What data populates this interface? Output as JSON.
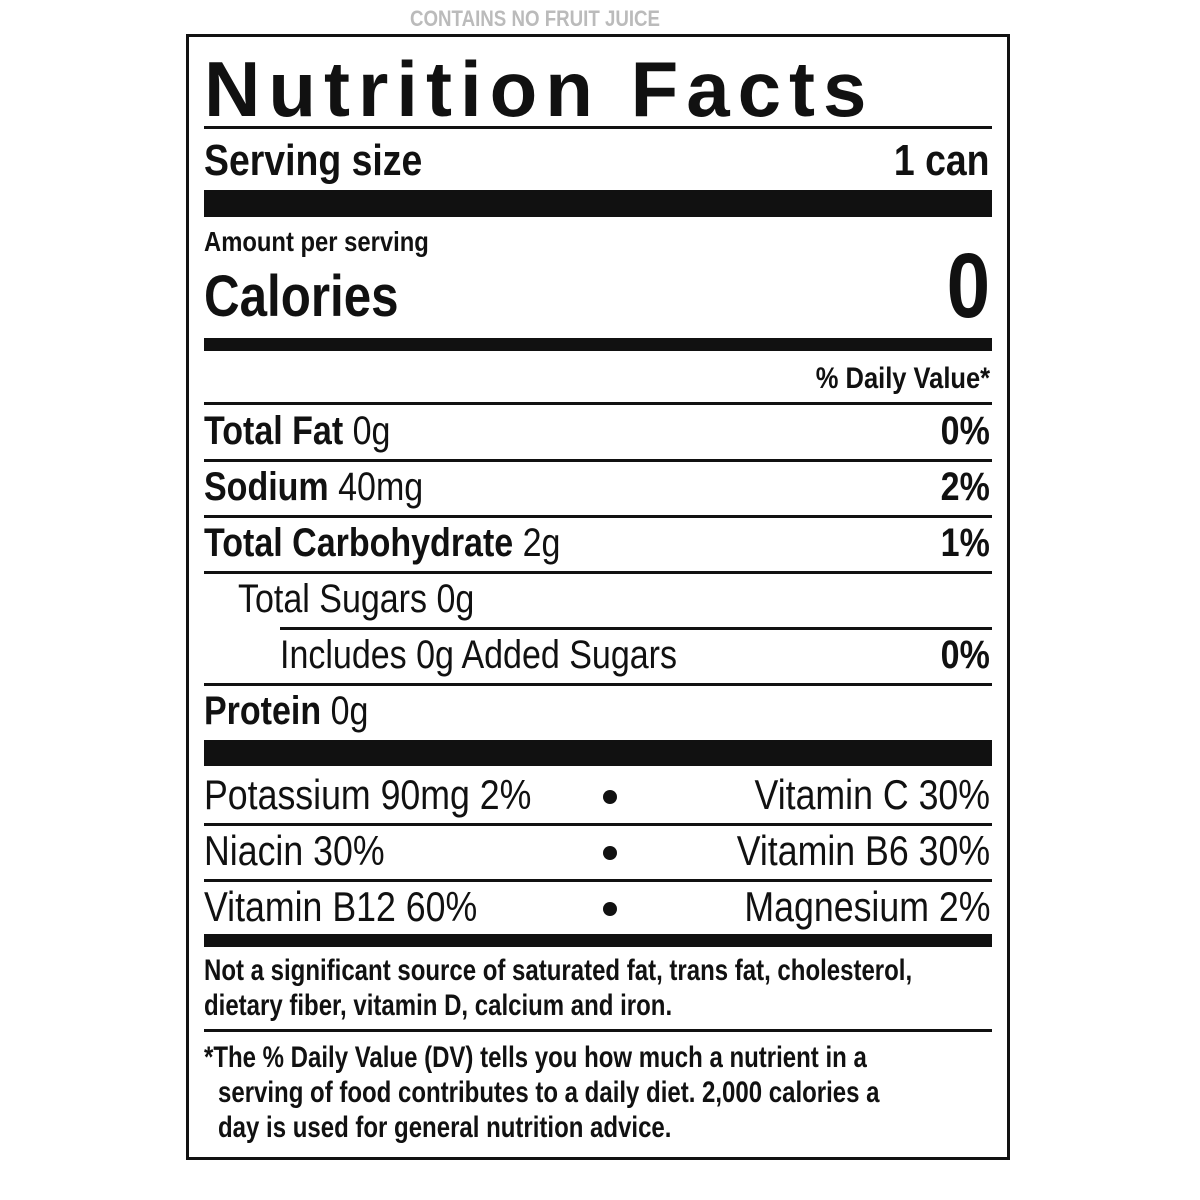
{
  "header": {
    "top_note": "CONTAINS NO FRUIT JUICE",
    "title": "Nutrition Facts"
  },
  "serving": {
    "label": "Serving size",
    "value": "1 can"
  },
  "calories": {
    "amount_label": "Amount per serving",
    "label": "Calories",
    "value": "0"
  },
  "dv_header": "% Daily Value*",
  "nutrients": [
    {
      "name": "Total Fat",
      "amount": "0g",
      "dv": "0%"
    },
    {
      "name": "Sodium",
      "amount": "40mg",
      "dv": "2%"
    },
    {
      "name": "Total Carbohydrate",
      "amount": "2g",
      "dv": "1%"
    },
    {
      "name": "Total Sugars",
      "amount": "0g"
    },
    {
      "name": "Includes 0g Added Sugars",
      "dv": "0%"
    },
    {
      "name": "Protein",
      "amount": "0g"
    }
  ],
  "vitamins": [
    [
      "Potassium 90mg 2%",
      "Vitamin C 30%"
    ],
    [
      "Niacin 30%",
      "Vitamin B6 30%"
    ],
    [
      "Vitamin B12 60%",
      "Magnesium 2%"
    ]
  ],
  "footnotes": {
    "not_significant": [
      "Not a significant source of saturated fat, trans fat, cholesterol,",
      "dietary fiber, vitamin D, calcium and iron."
    ],
    "dv_note": [
      "*The % Daily Value (DV) tells you how much a nutrient in a",
      "serving of food contributes to a daily diet. 2,000 calories a",
      "day is used for general nutrition advice."
    ]
  }
}
